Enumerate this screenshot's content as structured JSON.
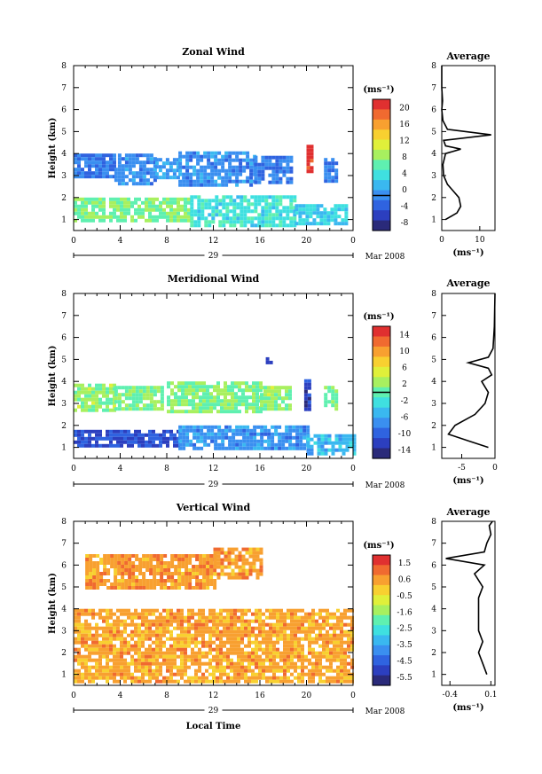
{
  "chart_data": [
    {
      "type": "heatmap",
      "title": "Zonal Wind",
      "xlabel": "",
      "ylabel": "Height (km)",
      "xlim": [
        0,
        24
      ],
      "ylim": [
        0.5,
        8
      ],
      "xticks": [
        "0",
        "4",
        "8",
        "12",
        "16",
        "20",
        "0"
      ],
      "yticks": [
        "1",
        "2",
        "3",
        "4",
        "5",
        "6",
        "7",
        "8"
      ],
      "date_label": "29",
      "month_label": "Mar 2008",
      "colorbar": {
        "unit": "(ms⁻¹)",
        "range": [
          -8,
          22
        ],
        "ticks": [
          "20",
          "16",
          "12",
          "8",
          "4",
          "0",
          "-4",
          "-8"
        ],
        "zero_line": 0
      },
      "regions": [
        {
          "t0": 0,
          "t1": 3.5,
          "h0": 2.9,
          "h1": 4.0,
          "value": -1
        },
        {
          "t0": 3.5,
          "t1": 7,
          "h0": 2.6,
          "h1": 4.0,
          "value": 0
        },
        {
          "t0": 7,
          "t1": 9,
          "h0": 2.9,
          "h1": 3.8,
          "value": 1
        },
        {
          "t0": 9,
          "t1": 15.5,
          "h0": 2.5,
          "h1": 4.1,
          "value": 0
        },
        {
          "t0": 15.5,
          "t1": 18.7,
          "h0": 2.7,
          "h1": 3.9,
          "value": -1
        },
        {
          "t0": 21.5,
          "t1": 22.5,
          "h0": 2.7,
          "h1": 3.8,
          "value": -1
        },
        {
          "t0": 0,
          "t1": 10,
          "h0": 1.0,
          "h1": 2.0,
          "value": 8
        },
        {
          "t0": 10,
          "t1": 19,
          "h0": 0.8,
          "h1": 2.1,
          "value": 5
        },
        {
          "t0": 19,
          "t1": 23.5,
          "h0": 0.8,
          "h1": 1.7,
          "value": 4
        },
        {
          "t0": 20,
          "t1": 20.6,
          "h0": 3.2,
          "h1": 4.4,
          "value": 21
        }
      ],
      "profile": {
        "title": "Average",
        "xlabel": "(ms⁻¹)",
        "xlim": [
          0,
          14
        ],
        "xticks": [
          "0",
          "10"
        ],
        "points": [
          [
            1,
            1.0
          ],
          [
            4,
            1.3
          ],
          [
            5,
            1.6
          ],
          [
            4.5,
            2.0
          ],
          [
            3,
            2.3
          ],
          [
            1.5,
            2.6
          ],
          [
            0.5,
            3.0
          ],
          [
            0.3,
            3.5
          ],
          [
            1,
            4.0
          ],
          [
            5,
            4.2
          ],
          [
            1,
            4.35
          ],
          [
            0.5,
            4.6
          ],
          [
            13,
            4.85
          ],
          [
            1.5,
            5.1
          ],
          [
            0.3,
            5.5
          ],
          [
            0,
            6.0
          ],
          [
            0.2,
            6.4
          ],
          [
            0,
            7.0
          ],
          [
            0,
            8.0
          ]
        ]
      }
    },
    {
      "type": "heatmap",
      "title": "Meridional Wind",
      "xlabel": "",
      "ylabel": "Height (km)",
      "xlim": [
        0,
        24
      ],
      "ylim": [
        0.5,
        8
      ],
      "xticks": [
        "0",
        "4",
        "8",
        "12",
        "16",
        "20",
        "0"
      ],
      "yticks": [
        "1",
        "2",
        "3",
        "4",
        "5",
        "6",
        "7",
        "8"
      ],
      "date_label": "29",
      "month_label": "Mar 2008",
      "colorbar": {
        "unit": "(ms⁻¹)",
        "range": [
          -16,
          16
        ],
        "ticks": [
          "14",
          "10",
          "6",
          "2",
          "-2",
          "-6",
          "-10",
          "-14"
        ],
        "zero_line": 0
      },
      "regions": [
        {
          "t0": 0,
          "t1": 3.5,
          "h0": 2.7,
          "h1": 3.9,
          "value": 2
        },
        {
          "t0": 3.5,
          "t1": 7.5,
          "h0": 2.8,
          "h1": 3.8,
          "value": 1
        },
        {
          "t0": 8,
          "t1": 16,
          "h0": 2.7,
          "h1": 4.0,
          "value": 1
        },
        {
          "t0": 16,
          "t1": 18.7,
          "h0": 2.8,
          "h1": 3.8,
          "value": 2
        },
        {
          "t0": 21.5,
          "t1": 22.5,
          "h0": 2.8,
          "h1": 3.8,
          "value": 1
        },
        {
          "t0": 0,
          "t1": 9,
          "h0": 1.0,
          "h1": 1.8,
          "value": -11
        },
        {
          "t0": 9,
          "t1": 20,
          "h0": 1.0,
          "h1": 2.0,
          "value": -7
        },
        {
          "t0": 20,
          "t1": 24,
          "h0": 0.7,
          "h1": 1.6,
          "value": -5
        },
        {
          "t0": 19.8,
          "t1": 20.4,
          "h0": 2.7,
          "h1": 4.1,
          "value": -12
        },
        {
          "t0": 16.5,
          "t1": 17,
          "h0": 4.8,
          "h1": 5.1,
          "value": -12
        }
      ],
      "profile": {
        "title": "Average",
        "xlabel": "(ms⁻¹)",
        "xlim": [
          -8,
          0
        ],
        "xticks": [
          "-5",
          "0"
        ],
        "points": [
          [
            -1,
            1.0
          ],
          [
            -4,
            1.3
          ],
          [
            -7,
            1.6
          ],
          [
            -6,
            2.0
          ],
          [
            -3,
            2.5
          ],
          [
            -1.5,
            3.0
          ],
          [
            -1,
            3.5
          ],
          [
            -2,
            4.0
          ],
          [
            -0.5,
            4.3
          ],
          [
            -1,
            4.6
          ],
          [
            -4,
            4.85
          ],
          [
            -1,
            5.1
          ],
          [
            -0.3,
            5.5
          ],
          [
            -0.1,
            6.5
          ],
          [
            0,
            8.0
          ]
        ]
      }
    },
    {
      "type": "heatmap",
      "title": "Vertical Wind",
      "xlabel": "Local Time",
      "ylabel": "Height (km)",
      "xlim": [
        0,
        24
      ],
      "ylim": [
        0.5,
        8
      ],
      "xticks": [
        "0",
        "4",
        "8",
        "12",
        "16",
        "20",
        "0"
      ],
      "yticks": [
        "1",
        "2",
        "3",
        "4",
        "5",
        "6",
        "7",
        "8"
      ],
      "date_label": "29",
      "month_label": "Mar 2008",
      "colorbar": {
        "unit": "(ms⁻¹)",
        "range": [
          -6,
          2
        ],
        "ticks": [
          "1.5",
          "0.6",
          "-0.5",
          "-1.6",
          "-2.5",
          "-3.5",
          "-4.5",
          "-5.5"
        ],
        "zero_line": null
      },
      "regions": [
        {
          "t0": 0,
          "t1": 24,
          "h0": 0.7,
          "h1": 4.0,
          "value": 0.4
        },
        {
          "t0": 1,
          "t1": 12,
          "h0": 5.0,
          "h1": 6.5,
          "value": 0.5
        },
        {
          "t0": 12,
          "t1": 16,
          "h0": 5.5,
          "h1": 6.8,
          "value": 0.5
        }
      ],
      "profile": {
        "title": "Average",
        "xlabel": "(ms⁻¹)",
        "xlim": [
          -0.5,
          0.15
        ],
        "xticks": [
          "-0.4",
          "0.1"
        ],
        "points": [
          [
            0.05,
            1.0
          ],
          [
            0.0,
            1.5
          ],
          [
            -0.05,
            2.0
          ],
          [
            0.0,
            2.5
          ],
          [
            -0.05,
            3.0
          ],
          [
            -0.05,
            3.5
          ],
          [
            -0.05,
            4.0
          ],
          [
            -0.05,
            4.5
          ],
          [
            0.0,
            5.0
          ],
          [
            -0.1,
            5.6
          ],
          [
            0.02,
            6.0
          ],
          [
            -0.45,
            6.3
          ],
          [
            0.02,
            6.6
          ],
          [
            0.05,
            7.0
          ],
          [
            0.1,
            7.4
          ],
          [
            0.08,
            7.8
          ],
          [
            0.12,
            8.0
          ]
        ]
      }
    }
  ]
}
